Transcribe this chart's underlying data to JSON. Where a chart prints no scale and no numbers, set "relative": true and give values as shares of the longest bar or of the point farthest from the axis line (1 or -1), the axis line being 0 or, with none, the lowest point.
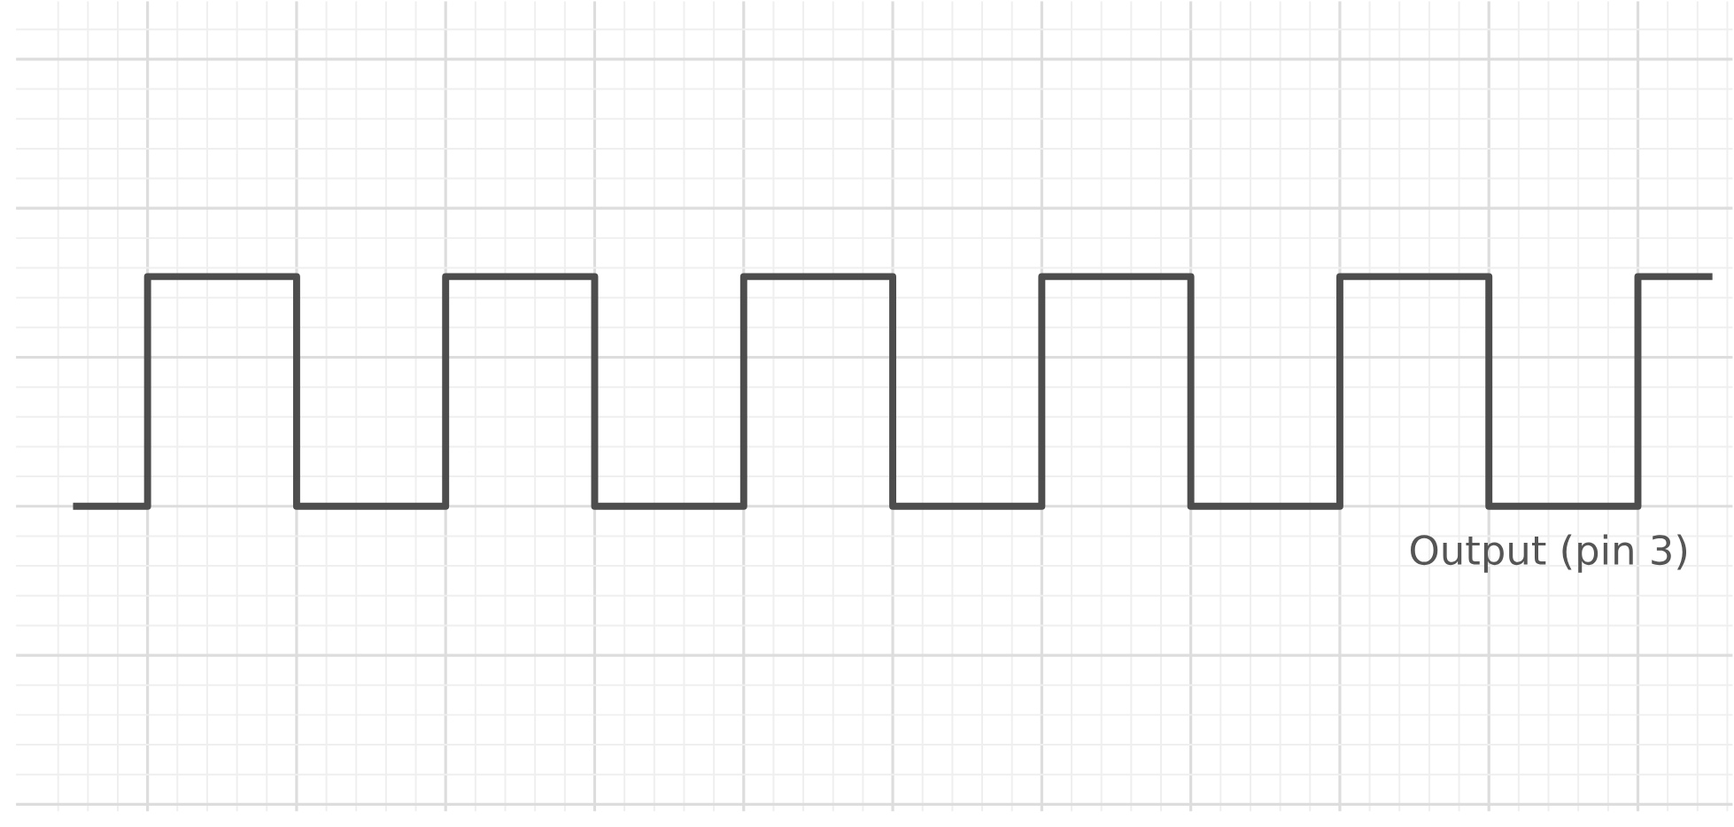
{
  "chart_data": {
    "type": "step",
    "relative": true,
    "grid": true,
    "categories": [
      null,
      null,
      null,
      null,
      null,
      null,
      null,
      null,
      null,
      null,
      null,
      null,
      null,
      null,
      null,
      null,
      null,
      null,
      null,
      null,
      null,
      null,
      null
    ],
    "series": [
      {
        "name": "Output (pin 3)",
        "color": "#4d4d4d",
        "values": [
          0,
          1,
          1,
          0,
          0,
          1,
          1,
          0,
          0,
          1,
          1,
          0,
          0,
          1,
          1,
          0,
          0,
          1,
          1,
          0,
          0,
          1,
          1
        ]
      }
    ]
  }
}
